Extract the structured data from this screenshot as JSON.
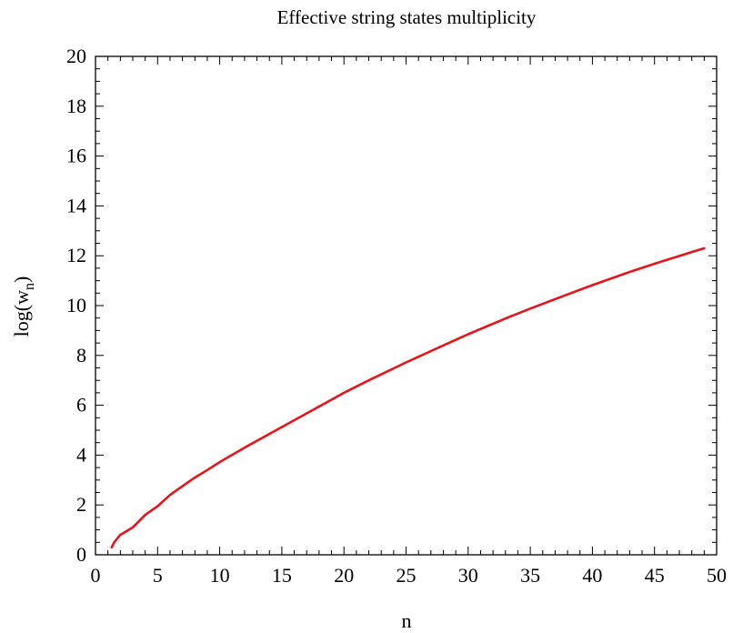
{
  "chart_data": {
    "type": "line",
    "title": "Effective string states multiplicity",
    "xlabel": "n",
    "ylabel": {
      "main": "log(w",
      "sub": "n",
      "close": ")"
    },
    "xlim": [
      0,
      50
    ],
    "ylim": [
      0,
      20
    ],
    "xticks": [
      0,
      5,
      10,
      15,
      20,
      25,
      30,
      35,
      40,
      45,
      50
    ],
    "yticks": [
      0,
      2,
      4,
      6,
      8,
      10,
      12,
      14,
      16,
      18,
      20
    ],
    "grid": false,
    "series": [
      {
        "color": "#e8141b",
        "x": [
          1.3,
          1.5,
          2,
          2.5,
          3,
          3.5,
          4,
          5,
          6,
          7,
          8,
          9,
          10,
          12,
          14,
          16,
          18,
          20,
          22,
          25,
          28,
          30,
          33,
          35,
          38,
          40,
          43,
          45,
          48,
          49
        ],
        "y": [
          0.3,
          0.5,
          0.8,
          0.95,
          1.1,
          1.35,
          1.6,
          1.95,
          2.4,
          2.75,
          3.1,
          3.4,
          3.72,
          4.3,
          4.85,
          5.4,
          5.95,
          6.5,
          7.0,
          7.72,
          8.4,
          8.85,
          9.48,
          9.88,
          10.45,
          10.82,
          11.35,
          11.68,
          12.15,
          12.3
        ]
      }
    ]
  }
}
